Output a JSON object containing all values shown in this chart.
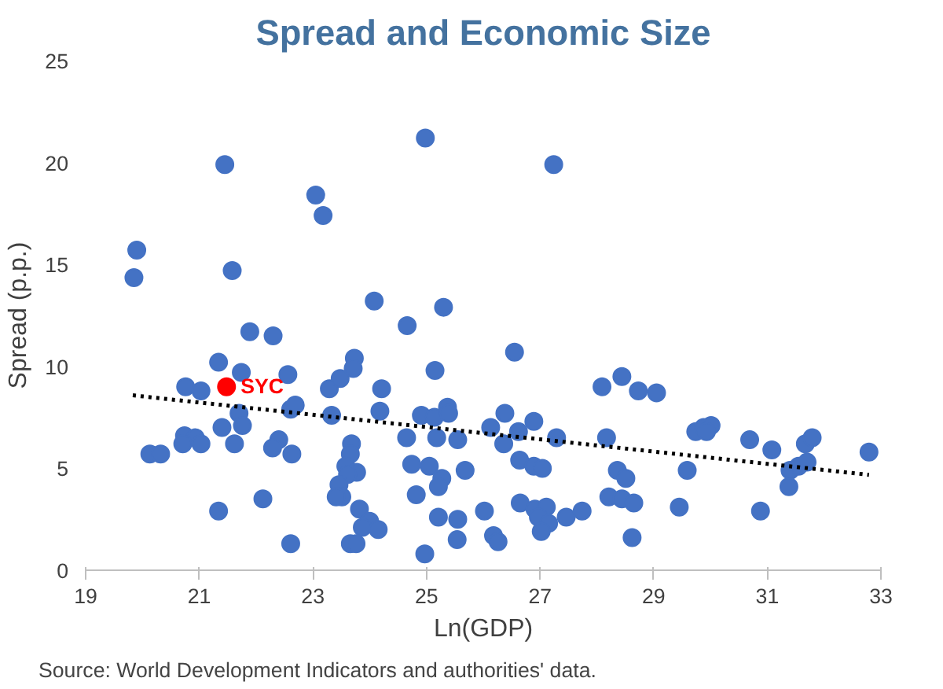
{
  "chart_data": {
    "type": "scatter",
    "title": "Spread and Economic Size",
    "xlabel": "Ln(GDP)",
    "ylabel": "Spread (p.p.)",
    "xlim": [
      19,
      33
    ],
    "xticks": [
      19,
      21,
      23,
      25,
      27,
      29,
      31,
      33
    ],
    "ylim": [
      0,
      25
    ],
    "yticks": [
      0,
      5,
      10,
      15,
      20,
      25
    ],
    "grid": false,
    "marker": "circle",
    "annotations": [
      "Source: World Development Indicators and authorities' data."
    ],
    "series": [
      {
        "color": "#4472c4",
        "x": [
          21.45,
          19.9,
          19.85,
          21.58,
          23.05,
          23.18,
          21.89,
          22.3,
          21.34,
          21.74,
          22.56,
          20.76,
          21.03,
          23.29,
          23.48,
          22.61,
          22.69,
          21.7,
          21.76,
          21.4,
          23.33,
          21.62,
          20.74,
          20.93,
          20.71,
          21.03,
          20.13,
          20.32,
          22.4,
          22.29,
          22.63,
          22.12,
          21.34,
          22.61,
          24.98,
          27.24,
          24.08,
          25.3,
          24.66,
          26.55,
          23.73,
          23.71,
          25.15,
          24.21,
          24.18,
          24.91,
          25.14,
          25.37,
          25.39,
          26.38,
          26.13,
          26.62,
          26.89,
          27.29,
          24.65,
          25.18,
          25.55,
          26.36,
          23.68,
          23.66,
          23.58,
          23.77,
          23.61,
          24.74,
          25.05,
          25.27,
          25.21,
          25.68,
          26.64,
          26.89,
          27.04,
          23.46,
          23.51,
          23.41,
          24.82,
          23.82,
          24.0,
          23.87,
          24.15,
          25.21,
          25.55,
          26.02,
          26.65,
          26.91,
          27.11,
          26.97,
          27.15,
          27.02,
          27.46,
          27.74,
          23.66,
          23.76,
          24.97,
          25.54,
          26.18,
          26.26,
          28.09,
          28.44,
          28.73,
          29.05,
          28.17,
          28.36,
          28.51,
          28.21,
          28.44,
          28.65,
          28.62,
          29.45,
          29.59,
          29.74,
          29.88,
          30.01,
          29.93,
          30.69,
          31.08,
          30.88,
          31.38,
          31.4,
          31.55,
          31.7,
          31.67,
          31.79,
          32.79
        ],
        "values": [
          19.9,
          15.7,
          14.35,
          14.7,
          18.4,
          17.4,
          11.7,
          11.5,
          10.2,
          9.7,
          9.6,
          9.0,
          8.8,
          8.9,
          9.4,
          7.9,
          8.1,
          7.7,
          7.1,
          7.0,
          7.6,
          6.2,
          6.6,
          6.5,
          6.2,
          6.2,
          5.7,
          5.7,
          6.4,
          6.0,
          5.7,
          3.5,
          2.9,
          1.3,
          21.2,
          19.9,
          13.2,
          12.9,
          12.0,
          10.7,
          10.4,
          9.9,
          9.8,
          8.9,
          7.8,
          7.6,
          7.5,
          8.0,
          7.7,
          7.7,
          7.0,
          6.8,
          7.3,
          6.5,
          6.5,
          6.5,
          6.4,
          6.2,
          6.2,
          5.7,
          5.1,
          4.8,
          4.7,
          5.2,
          5.1,
          4.5,
          4.1,
          4.9,
          5.4,
          5.1,
          5.0,
          4.2,
          3.6,
          3.6,
          3.7,
          3.0,
          2.4,
          2.1,
          2.0,
          2.6,
          2.5,
          2.9,
          3.3,
          3.0,
          3.1,
          2.6,
          2.3,
          1.9,
          2.6,
          2.9,
          1.3,
          1.3,
          0.8,
          1.5,
          1.7,
          1.4,
          9.0,
          9.5,
          8.8,
          8.7,
          6.5,
          4.9,
          4.5,
          3.6,
          3.5,
          3.3,
          1.6,
          3.1,
          4.9,
          6.8,
          7.0,
          7.1,
          6.8,
          6.4,
          5.9,
          2.9,
          4.1,
          4.9,
          5.1,
          5.3,
          6.2,
          6.5,
          5.8
        ]
      },
      {
        "name": "SYC",
        "color": "#ff0000",
        "x": [
          21.48
        ],
        "values": [
          9.0
        ]
      },
      {
        "type": "line",
        "color": "#000000",
        "line_style": "dotted",
        "marker": "none",
        "x": [
          19.83,
          32.79
        ],
        "values": [
          8.58,
          4.68
        ]
      }
    ]
  }
}
